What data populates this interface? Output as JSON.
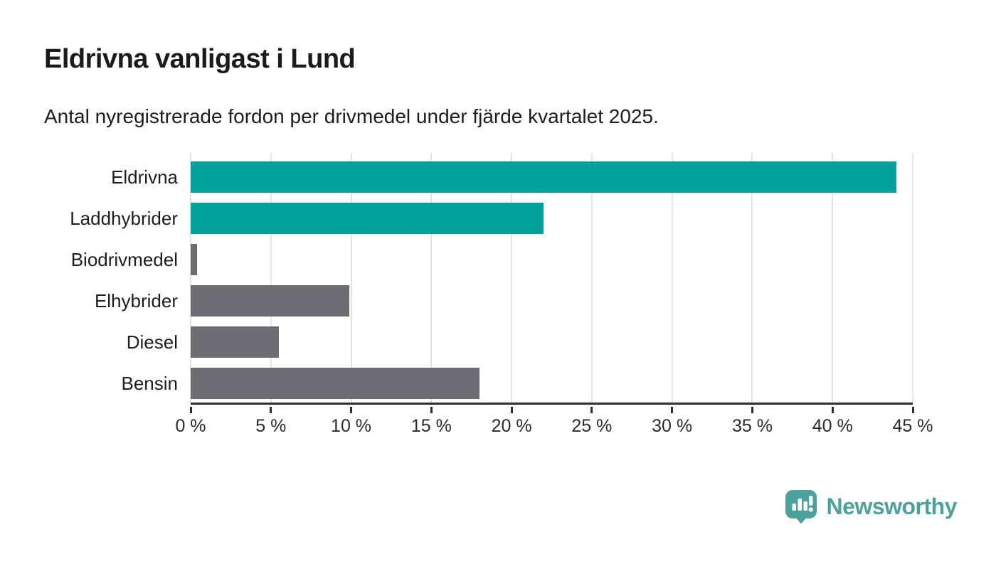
{
  "header": {
    "title": "Eldrivna vanligast i Lund",
    "subtitle": "Antal nyregistrerade fordon per drivmedel under fjärde kvartalet 2025."
  },
  "chart_data": {
    "type": "bar",
    "orientation": "horizontal",
    "title": "Eldrivna vanligast i Lund",
    "subtitle": "Antal nyregistrerade fordon per drivmedel under fjärde kvartalet 2025.",
    "categories": [
      "Eldrivna",
      "Laddhybrider",
      "Biodrivmedel",
      "Elhybrider",
      "Diesel",
      "Bensin"
    ],
    "values": [
      44,
      22,
      0.4,
      9.9,
      5.5,
      18
    ],
    "unit": "%",
    "bar_colors": [
      "#00a39c",
      "#00a39c",
      "#6c6c72",
      "#6c6c72",
      "#6c6c72",
      "#6c6c72"
    ],
    "xlabel": "",
    "ylabel": "",
    "xlim": [
      0,
      45
    ],
    "xticks": [
      0,
      5,
      10,
      15,
      20,
      25,
      30,
      35,
      40,
      45
    ],
    "xtick_suffix": " %",
    "grid": true,
    "legend": false
  },
  "colors": {
    "highlight": "#00a39c",
    "neutral": "#6c6c72",
    "gridline": "#e3e3e3",
    "axis": "#2e2e2e",
    "brand": "#4ba19b"
  },
  "branding": {
    "logo_text": "Newsworthy",
    "logo_icon": "newsworthy-chart-bubble-icon"
  }
}
